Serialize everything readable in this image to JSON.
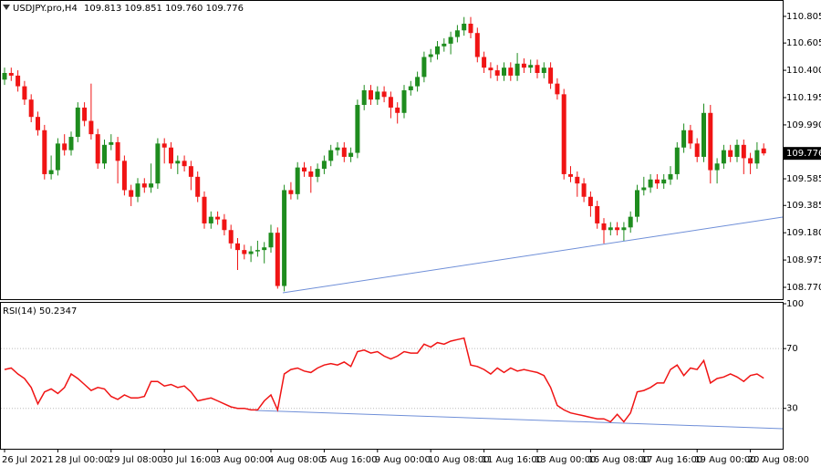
{
  "chart_data": [
    {
      "type": "candlestick",
      "title": "USDJPY.pro,H4",
      "subtitle": "109.813 109.851 109.760 109.776",
      "categories": [
        "26 Jul 2021",
        null,
        null,
        null,
        null,
        null,
        null,
        null,
        "28 Jul 00:00",
        null,
        null,
        null,
        null,
        null,
        null,
        null,
        "29 Jul 08:00",
        null,
        null,
        null,
        null,
        null,
        null,
        null,
        "30 Jul 16:00",
        null,
        null,
        null,
        null,
        null,
        null,
        null,
        "3 Aug 00:00",
        null,
        null,
        null,
        null,
        null,
        null,
        null,
        "4 Aug 08:00",
        null,
        null,
        null,
        null,
        null,
        null,
        null,
        "5 Aug 16:00",
        null,
        null,
        null,
        null,
        null,
        null,
        null,
        "9 Aug 00:00",
        null,
        null,
        null,
        null,
        null,
        null,
        null,
        "10 Aug 08:00",
        null,
        null,
        null,
        null,
        null,
        null,
        null,
        "11 Aug 16:00",
        null,
        null,
        null,
        null,
        null,
        null,
        null,
        "13 Aug 00:00",
        null,
        null,
        null,
        null,
        null,
        null,
        null,
        "16 Aug 08:00",
        null,
        null,
        null,
        null,
        null,
        null,
        null,
        "17 Aug 16:00",
        null,
        null,
        null,
        null,
        null,
        null,
        null,
        "19 Aug 00:00",
        null,
        null,
        null,
        null,
        null,
        null,
        null,
        "20 Aug 08:00",
        null,
        null
      ],
      "open": [
        110.33,
        110.38,
        110.36,
        110.28,
        110.18,
        110.05,
        109.95,
        109.62,
        109.65,
        109.85,
        109.8,
        109.9,
        110.12,
        110.02,
        109.92,
        109.7,
        109.84,
        109.86,
        109.72,
        109.5,
        109.45,
        109.55,
        109.52,
        109.55,
        109.85,
        109.82,
        109.7,
        109.72,
        109.68,
        109.6,
        109.45,
        109.25,
        109.3,
        109.28,
        109.2,
        109.1,
        109.05,
        109.02,
        109.04,
        109.05,
        109.07,
        109.18,
        108.78,
        109.5,
        109.47,
        109.67,
        109.64,
        109.6,
        109.66,
        109.72,
        109.8,
        109.82,
        109.75,
        109.78,
        110.14,
        110.25,
        110.18,
        110.24,
        110.2,
        110.12,
        110.08,
        110.25,
        110.28,
        110.35,
        110.5,
        110.52,
        110.58,
        110.6,
        110.65,
        110.7,
        110.75,
        110.68,
        110.5,
        110.42,
        110.4,
        110.36,
        110.42,
        110.36,
        110.45,
        110.42,
        110.44,
        110.38,
        110.42,
        110.3,
        110.22,
        109.62,
        109.6,
        109.55,
        109.45,
        109.38,
        109.25,
        109.2,
        109.22,
        109.2,
        109.22,
        109.3,
        109.5,
        109.52,
        109.58,
        109.55,
        109.58,
        109.62,
        109.82,
        109.95,
        109.85,
        109.75,
        110.08,
        109.65,
        109.7,
        109.8,
        109.75,
        109.84,
        109.74,
        109.7,
        109.813
      ],
      "high": [
        110.42,
        110.42,
        110.4,
        110.32,
        110.22,
        110.09,
        109.99,
        109.76,
        109.89,
        109.92,
        109.94,
        110.16,
        110.16,
        110.3,
        109.96,
        109.88,
        109.92,
        109.9,
        109.76,
        109.54,
        109.59,
        109.59,
        109.7,
        109.89,
        109.89,
        109.86,
        109.76,
        109.76,
        109.72,
        109.64,
        109.49,
        109.34,
        109.34,
        109.32,
        109.24,
        109.14,
        109.09,
        109.08,
        109.12,
        109.11,
        109.24,
        109.22,
        109.54,
        109.56,
        109.71,
        109.71,
        109.68,
        109.7,
        109.76,
        109.84,
        109.86,
        109.86,
        109.82,
        110.18,
        110.29,
        110.29,
        110.28,
        110.28,
        110.24,
        110.16,
        110.29,
        110.32,
        110.39,
        110.54,
        110.56,
        110.62,
        110.64,
        110.69,
        110.74,
        110.8,
        110.8,
        110.72,
        110.54,
        110.46,
        110.44,
        110.46,
        110.46,
        110.53,
        110.49,
        110.48,
        110.48,
        110.46,
        110.46,
        110.34,
        110.26,
        109.68,
        109.64,
        109.59,
        109.49,
        109.42,
        109.29,
        109.26,
        109.26,
        109.26,
        109.34,
        109.54,
        109.6,
        109.62,
        109.62,
        109.62,
        109.68,
        109.86,
        110.0,
        109.99,
        109.89,
        110.15,
        110.14,
        109.74,
        109.84,
        109.84,
        109.88,
        109.88,
        109.78,
        109.86,
        109.851
      ],
      "low": [
        110.29,
        110.32,
        110.24,
        110.14,
        110.01,
        109.91,
        109.58,
        109.58,
        109.61,
        109.76,
        109.76,
        109.86,
        109.98,
        109.88,
        109.66,
        109.66,
        109.8,
        109.55,
        109.46,
        109.38,
        109.41,
        109.48,
        109.48,
        109.51,
        109.7,
        109.66,
        109.62,
        109.64,
        109.5,
        109.41,
        109.21,
        109.21,
        109.24,
        109.16,
        109.06,
        108.9,
        108.98,
        108.96,
        109.0,
        108.95,
        109.03,
        108.76,
        108.74,
        109.43,
        109.43,
        109.6,
        109.48,
        109.56,
        109.62,
        109.68,
        109.76,
        109.71,
        109.71,
        109.74,
        110.1,
        110.14,
        110.14,
        110.16,
        110.04,
        110.0,
        110.04,
        110.21,
        110.24,
        110.31,
        110.46,
        110.48,
        110.54,
        110.52,
        110.61,
        110.66,
        110.64,
        110.46,
        110.38,
        110.34,
        110.32,
        110.32,
        110.32,
        110.32,
        110.38,
        110.38,
        110.34,
        110.34,
        110.26,
        110.18,
        109.58,
        109.56,
        109.45,
        109.41,
        109.3,
        109.21,
        109.1,
        109.16,
        109.16,
        109.12,
        109.18,
        109.26,
        109.46,
        109.48,
        109.51,
        109.51,
        109.54,
        109.58,
        109.78,
        109.81,
        109.71,
        109.71,
        109.55,
        109.55,
        109.66,
        109.71,
        109.71,
        109.62,
        109.62,
        109.66,
        109.76
      ],
      "close": [
        110.38,
        110.36,
        110.28,
        110.18,
        110.05,
        109.95,
        109.62,
        109.65,
        109.85,
        109.8,
        109.9,
        110.12,
        110.02,
        109.92,
        109.7,
        109.84,
        109.86,
        109.72,
        109.5,
        109.45,
        109.55,
        109.52,
        109.55,
        109.85,
        109.82,
        109.7,
        109.72,
        109.68,
        109.6,
        109.45,
        109.25,
        109.3,
        109.28,
        109.2,
        109.1,
        109.05,
        109.02,
        109.04,
        109.05,
        109.07,
        109.18,
        108.78,
        109.5,
        109.47,
        109.67,
        109.64,
        109.6,
        109.66,
        109.72,
        109.8,
        109.82,
        109.75,
        109.78,
        110.14,
        110.25,
        110.18,
        110.24,
        110.2,
        110.12,
        110.08,
        110.25,
        110.28,
        110.35,
        110.5,
        110.52,
        110.58,
        110.6,
        110.65,
        110.7,
        110.75,
        110.68,
        110.5,
        110.42,
        110.4,
        110.36,
        110.42,
        110.36,
        110.45,
        110.42,
        110.44,
        110.38,
        110.42,
        110.3,
        110.22,
        109.62,
        109.6,
        109.55,
        109.45,
        109.38,
        109.25,
        109.2,
        109.22,
        109.2,
        109.22,
        109.3,
        109.5,
        109.52,
        109.58,
        109.55,
        109.58,
        109.62,
        109.82,
        109.95,
        109.85,
        109.75,
        110.08,
        109.65,
        109.7,
        109.8,
        109.75,
        109.84,
        109.74,
        109.7,
        109.8,
        109.776
      ],
      "up_color": "#1e8c1e",
      "down_color": "#f01414",
      "ylim": [
        108.681,
        110.928
      ],
      "yticks": [
        110.805,
        110.605,
        {
          "value": 110.4,
          "label": "110.400"
        },
        110.195,
        {
          "value": 109.99,
          "label": "109.990"
        },
        109.585,
        109.385,
        {
          "value": 109.18,
          "label": "109.180"
        },
        108.975,
        {
          "value": 108.77,
          "label": "108.770"
        }
      ],
      "last_price": 109.776
    },
    {
      "type": "line",
      "title": "RSI(14) 50.2347",
      "series": [
        {
          "color": "#f01414",
          "values": [
            56,
            57,
            53,
            50,
            44,
            33,
            41,
            43,
            40,
            44,
            53,
            50,
            46,
            42,
            44,
            43,
            38,
            36,
            39,
            37,
            37,
            38,
            48,
            48,
            45,
            46,
            44,
            45,
            41,
            35,
            36,
            37,
            35,
            33,
            31,
            30,
            30,
            29,
            29,
            35,
            39,
            29,
            53,
            56,
            57,
            55,
            54,
            57,
            59,
            60,
            59,
            61,
            58,
            68,
            69,
            67,
            68,
            65,
            63,
            65,
            68,
            67,
            67,
            73,
            71,
            74,
            73,
            75,
            76,
            77,
            59,
            58,
            56,
            53,
            57,
            54,
            57,
            55,
            56,
            55,
            54,
            52,
            44,
            32,
            29,
            27,
            26,
            25,
            24,
            23,
            23,
            21,
            26,
            21,
            27,
            41,
            42,
            44,
            47,
            47,
            56,
            59,
            52,
            57,
            56,
            62,
            47,
            50,
            51,
            53,
            51,
            48,
            52,
            53,
            50.2347
          ]
        }
      ],
      "ylim": [
        3,
        100
      ],
      "yticks": [
        100,
        70,
        30
      ],
      "grid": true
    }
  ]
}
